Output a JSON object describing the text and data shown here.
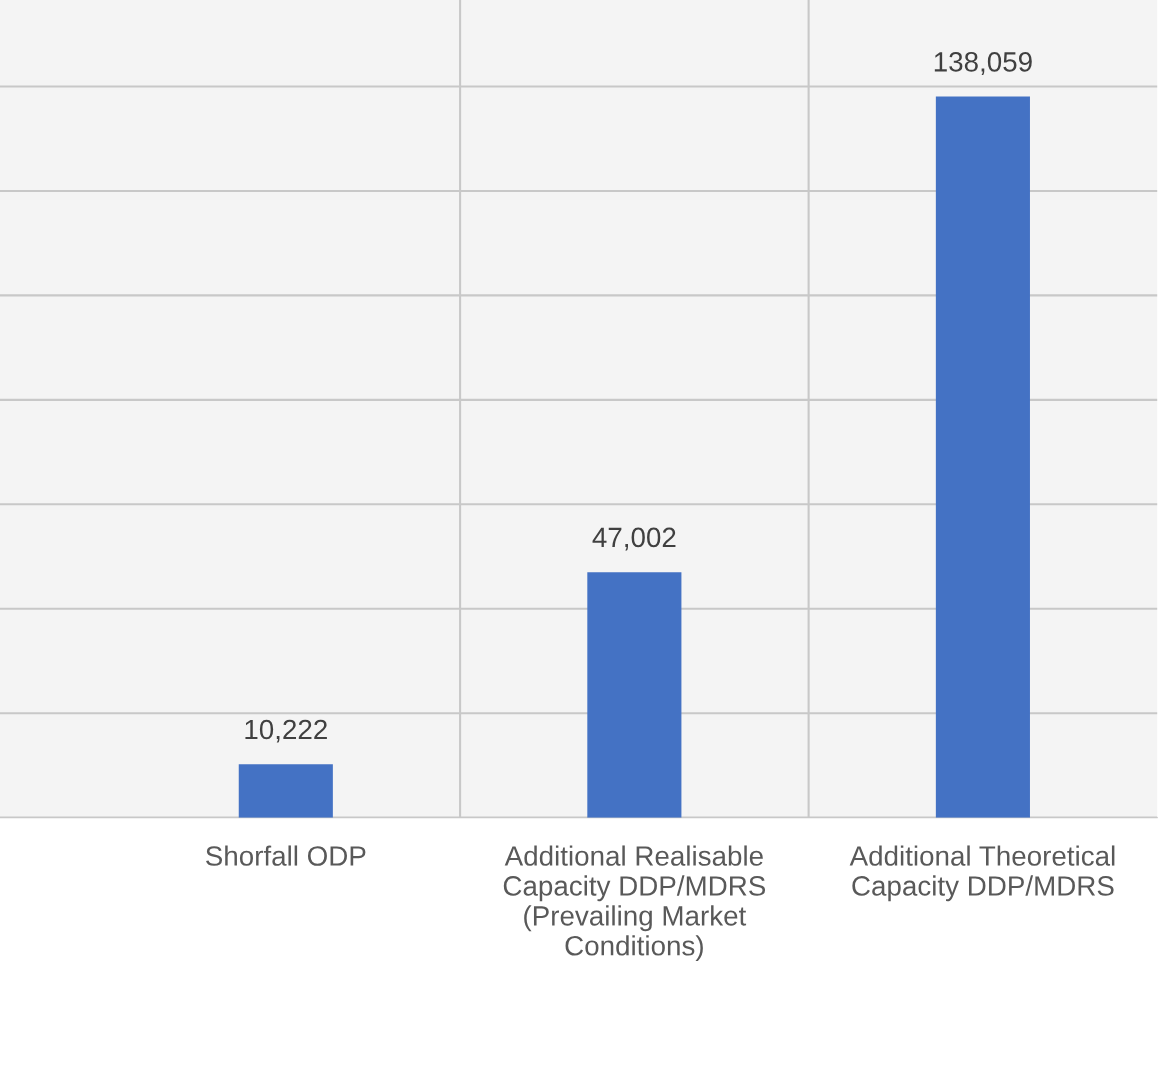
{
  "chart_data": {
    "type": "bar",
    "categories": [
      "Shorfall ODP",
      "Additional Realisable\nCapacity DDP/MDRS\n(Prevailing Market\nConditions)",
      "Additional Theoretical\nCapacity DDP/MDRS"
    ],
    "values": [
      10222,
      47002,
      138059
    ],
    "value_labels": [
      "10,222",
      "47,002",
      "138,059"
    ],
    "color": "#4472c4",
    "grid": true,
    "tick_labels": "x"
  }
}
